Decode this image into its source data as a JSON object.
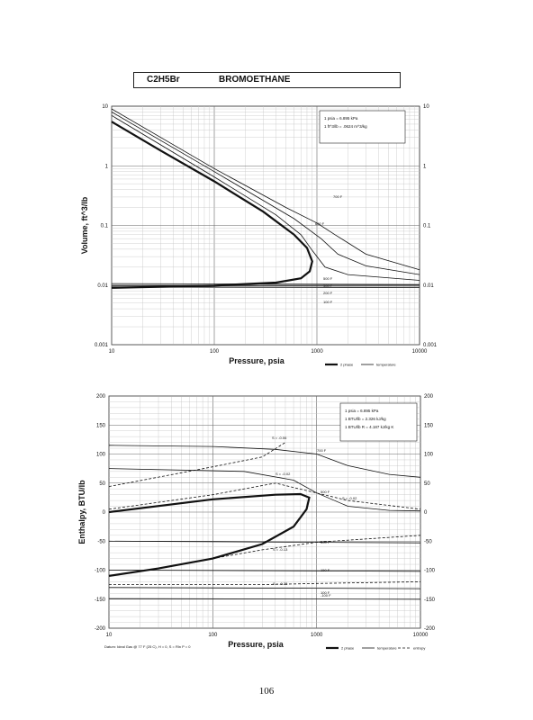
{
  "header": {
    "formula": "C2H5Br",
    "compound_name": "BROMOETHANE"
  },
  "page_number": "106",
  "chart_data": [
    {
      "type": "line",
      "ylabel": "Volume, ft^3/lb",
      "xlabel": "Pressure, psia",
      "xscale": "log",
      "yscale": "log",
      "xlim": [
        10,
        10000
      ],
      "ylim": [
        0.001,
        10
      ],
      "x_ticks": [
        "10",
        "100",
        "1000",
        "10000"
      ],
      "y_ticks": [
        "0.001",
        "0.01",
        "0.1",
        "1",
        "10"
      ],
      "grid": true,
      "conversion_notes": [
        "1 psia = 6.895 kPa",
        "1 ft^3/lb = .0624 m^3/kg"
      ],
      "legend": {
        "placement": "bottom-right",
        "entries": [
          "2 phase",
          "temperature"
        ]
      },
      "series": [
        {
          "name": "2 phase",
          "style": "thick",
          "points": [
            [
              10,
              5.5
            ],
            [
              30,
              1.8
            ],
            [
              100,
              0.55
            ],
            [
              300,
              0.17
            ],
            [
              600,
              0.07
            ],
            [
              800,
              0.042
            ],
            [
              900,
              0.025
            ],
            [
              850,
              0.017
            ],
            [
              700,
              0.013
            ],
            [
              400,
              0.011
            ],
            [
              100,
              0.0098
            ],
            [
              10,
              0.009
            ]
          ]
        },
        {
          "name": "700 F",
          "style": "thin",
          "points": [
            [
              10,
              9.0
            ],
            [
              100,
              0.9
            ],
            [
              500,
              0.2
            ],
            [
              1000,
              0.11
            ],
            [
              1500,
              0.07
            ],
            [
              3000,
              0.033
            ],
            [
              10000,
              0.018
            ]
          ]
        },
        {
          "name": "600 F",
          "style": "thin",
          "points": [
            [
              10,
              8.0
            ],
            [
              100,
              0.8
            ],
            [
              600,
              0.13
            ],
            [
              1100,
              0.06
            ],
            [
              1600,
              0.033
            ],
            [
              3000,
              0.021
            ],
            [
              10000,
              0.015
            ]
          ]
        },
        {
          "name": "500 F",
          "style": "thin",
          "points": [
            [
              10,
              7.0
            ],
            [
              100,
              0.65
            ],
            [
              400,
              0.15
            ],
            [
              700,
              0.07
            ],
            [
              900,
              0.038
            ],
            [
              1200,
              0.02
            ],
            [
              2000,
              0.015
            ],
            [
              10000,
              0.012
            ]
          ]
        },
        {
          "name": "300 F",
          "style": "thin",
          "points": [
            [
              10,
              0.0106
            ],
            [
              10000,
              0.0102
            ]
          ]
        },
        {
          "name": "200 F",
          "style": "thin",
          "points": [
            [
              10,
              0.0098
            ],
            [
              10000,
              0.0096
            ]
          ]
        },
        {
          "name": "100 F",
          "style": "thin",
          "points": [
            [
              10,
              0.0093
            ],
            [
              10000,
              0.0091
            ]
          ]
        }
      ],
      "annotations": [
        "700 F",
        "600 F",
        "500 F",
        "300 F",
        "200 F",
        "100 F"
      ]
    },
    {
      "type": "line",
      "ylabel": "Enthalpy, BTU/lb",
      "xlabel": "Pressure, psia",
      "xscale": "log",
      "xlim": [
        10,
        10000
      ],
      "ylim": [
        -200,
        200
      ],
      "x_ticks": [
        "10",
        "100",
        "1000",
        "10000"
      ],
      "y_ticks": [
        "-200",
        "-150",
        "-100",
        "-50",
        "0",
        "50",
        "100",
        "150",
        "200"
      ],
      "grid": true,
      "conversion_notes": [
        "1 psia = 6.895 kPa",
        "1 BTU/lb = 2.326 kJ/kg",
        "1 BTU/lb R = 4.187 kJ/kg K"
      ],
      "footnote": "Datum: Ideal Gas @ 77 F (25 C), H = 0, S = Rln P = 0",
      "legend": {
        "placement": "bottom-right",
        "entries": [
          "2 phase",
          "temperature",
          "entropy"
        ]
      },
      "series": [
        {
          "name": "2 phase",
          "style": "thick",
          "points": [
            [
              10,
              -110
            ],
            [
              30,
              -97
            ],
            [
              100,
              -80
            ],
            [
              300,
              -55
            ],
            [
              600,
              -25
            ],
            [
              800,
              5
            ],
            [
              850,
              25
            ],
            [
              700,
              31
            ],
            [
              400,
              30
            ],
            [
              100,
              22
            ],
            [
              10,
              0
            ]
          ]
        },
        {
          "name": "700 F",
          "style": "thin",
          "points": [
            [
              10,
              115
            ],
            [
              100,
              113
            ],
            [
              400,
              108
            ],
            [
              1000,
              100
            ],
            [
              2000,
              80
            ],
            [
              5000,
              65
            ],
            [
              10000,
              60
            ]
          ]
        },
        {
          "name": "500 F",
          "style": "thin",
          "points": [
            [
              10,
              75
            ],
            [
              200,
              70
            ],
            [
              600,
              55
            ],
            [
              1000,
              33
            ],
            [
              2000,
              10
            ],
            [
              5000,
              3
            ],
            [
              10000,
              2
            ]
          ]
        },
        {
          "name": "300 F",
          "style": "thin",
          "points": [
            [
              10,
              -50
            ],
            [
              10000,
              -53
            ]
          ]
        },
        {
          "name": "150 F",
          "style": "thin",
          "points": [
            [
              10,
              -100
            ],
            [
              10000,
              -102
            ]
          ]
        },
        {
          "name": "100 F",
          "style": "thin",
          "points": [
            [
              10,
              -130
            ],
            [
              10000,
              -132
            ]
          ]
        },
        {
          "name": "-100 F",
          "style": "thin",
          "points": [
            [
              10,
              -149
            ],
            [
              10000,
              -150
            ]
          ]
        },
        {
          "name": "S = -0.06",
          "style": "dashed",
          "points": [
            [
              10,
              44
            ],
            [
              100,
              78
            ],
            [
              300,
              95
            ],
            [
              500,
              120
            ]
          ]
        },
        {
          "name": "S = -0.02",
          "style": "dashed",
          "points": [
            [
              10,
              5
            ],
            [
              100,
              30
            ],
            [
              400,
              50
            ],
            [
              2000,
              20
            ],
            [
              10000,
              5
            ]
          ]
        },
        {
          "name": "S = -0.13",
          "style": "dashed",
          "points": [
            [
              100,
              -80
            ],
            [
              300,
              -65
            ],
            [
              1000,
              -52
            ],
            [
              10000,
              -40
            ]
          ]
        },
        {
          "name": "S = -0.23",
          "style": "dashed",
          "points": [
            [
              10,
              -125
            ],
            [
              300,
              -125
            ],
            [
              1000,
              -123
            ],
            [
              10000,
              -120
            ]
          ]
        }
      ],
      "annotations": [
        "S = -0.06",
        "700 F",
        "S = -0.02",
        "500 F",
        "S = -0.02",
        "300 F",
        "S = -0.13",
        "150 F",
        "S = -0.23",
        "100 F",
        "-100 F"
      ]
    }
  ]
}
